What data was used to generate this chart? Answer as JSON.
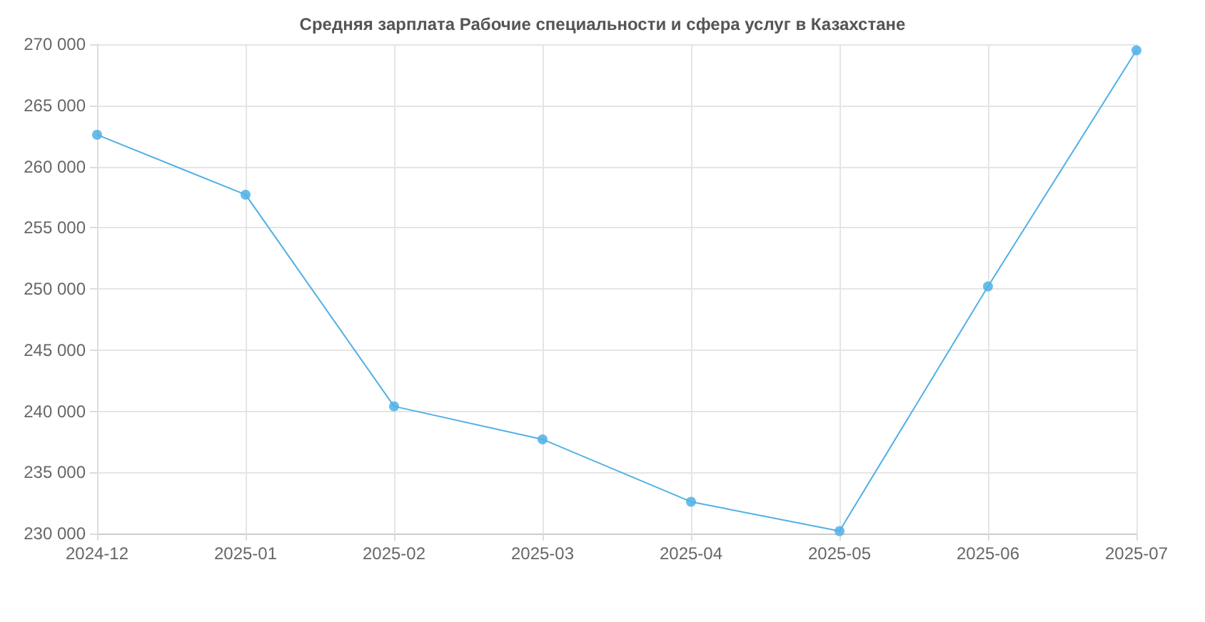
{
  "chart_data": {
    "type": "line",
    "title": "Средняя зарплата Рабочие специальности и сфера услуг в Казахстане",
    "categories": [
      "2024-12",
      "2025-01",
      "2025-02",
      "2025-03",
      "2025-04",
      "2025-05",
      "2025-06",
      "2025-07"
    ],
    "series": [
      {
        "color": "#4fb0e6",
        "values": [
          262600,
          257700,
          240400,
          237700,
          232600,
          230200,
          250200,
          269500
        ]
      }
    ],
    "ylim": [
      230000,
      270000
    ],
    "yticks": [
      {
        "value": 230000,
        "label": "230 000"
      },
      {
        "value": 235000,
        "label": "235 000"
      },
      {
        "value": 240000,
        "label": "240 000"
      },
      {
        "value": 245000,
        "label": "245 000"
      },
      {
        "value": 250000,
        "label": "250 000"
      },
      {
        "value": 255000,
        "label": "255 000"
      },
      {
        "value": 260000,
        "label": "260 000"
      },
      {
        "value": 265000,
        "label": "265 000"
      },
      {
        "value": 270000,
        "label": "270 000"
      }
    ],
    "grid": true,
    "marker": "circle",
    "line_style": "solid"
  }
}
